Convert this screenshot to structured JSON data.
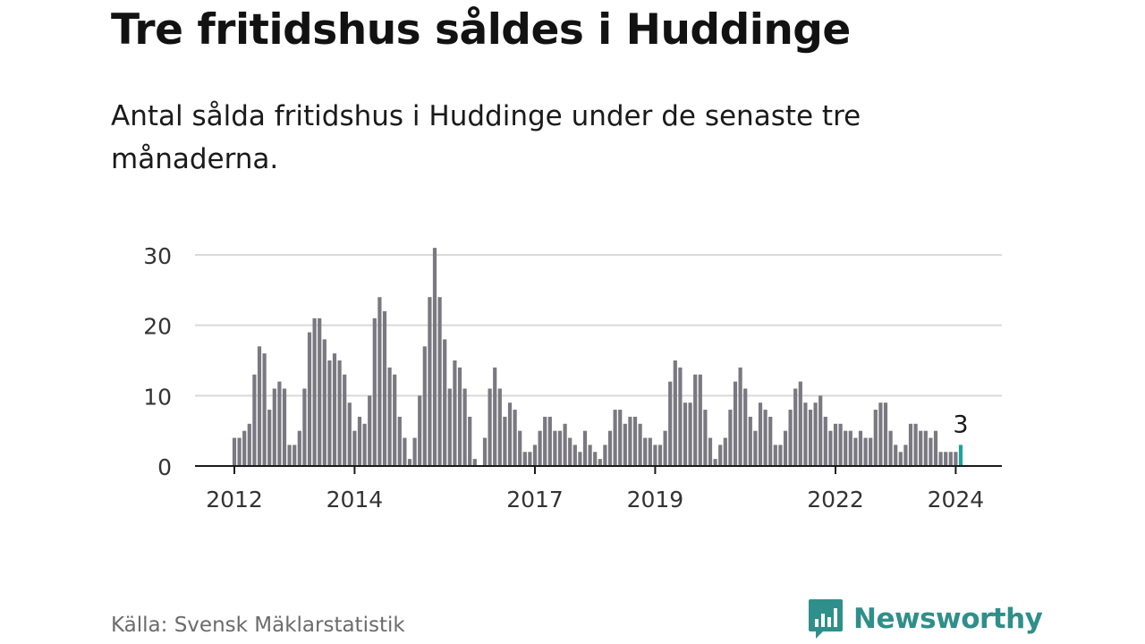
{
  "title": "Tre fritidshus såldes i Huddinge",
  "subtitle": "Antal sålda fritidshus i Huddinge under de senaste tre månaderna.",
  "source": "Källa: Svensk Mäklarstatistik",
  "logo": {
    "text": "Newsworthy",
    "icon": "bar-chart-speech-bubble-icon"
  },
  "colors": {
    "bar": "#7a7880",
    "highlight": "#1aa39a",
    "grid": "#d9d9d9",
    "axis": "#1a1a1a",
    "brand": "#2f8f8a"
  },
  "chart_data": {
    "type": "bar",
    "x_start": "2012-01",
    "x_end": "2024-02",
    "ylim": [
      0,
      30
    ],
    "yticks": [
      0,
      10,
      20,
      30
    ],
    "xticks": [
      "2012",
      "2014",
      "2017",
      "2019",
      "2022",
      "2024"
    ],
    "grid": true,
    "highlight": {
      "x": "2024-02",
      "value": 3,
      "label": "3"
    },
    "values": [
      4,
      4,
      5,
      6,
      13,
      17,
      16,
      8,
      11,
      12,
      11,
      3,
      3,
      5,
      11,
      19,
      21,
      21,
      18,
      15,
      16,
      15,
      13,
      9,
      5,
      7,
      6,
      10,
      21,
      24,
      22,
      14,
      13,
      7,
      4,
      1,
      4,
      10,
      17,
      24,
      31,
      24,
      18,
      11,
      15,
      14,
      11,
      7,
      1,
      0,
      4,
      11,
      14,
      11,
      7,
      9,
      8,
      5,
      2,
      2,
      3,
      5,
      7,
      7,
      5,
      5,
      6,
      4,
      3,
      2,
      5,
      3,
      2,
      1,
      3,
      5,
      8,
      8,
      6,
      7,
      7,
      6,
      4,
      4,
      3,
      3,
      5,
      12,
      15,
      14,
      9,
      9,
      13,
      13,
      8,
      4,
      1,
      3,
      4,
      8,
      12,
      14,
      11,
      7,
      5,
      9,
      8,
      7,
      3,
      3,
      5,
      8,
      11,
      12,
      9,
      8,
      9,
      10,
      7,
      5,
      6,
      6,
      5,
      5,
      4,
      5,
      4,
      4,
      8,
      9,
      9,
      5,
      3,
      2,
      3,
      6,
      6,
      5,
      5,
      4,
      5,
      2,
      2,
      2,
      2,
      3
    ]
  }
}
